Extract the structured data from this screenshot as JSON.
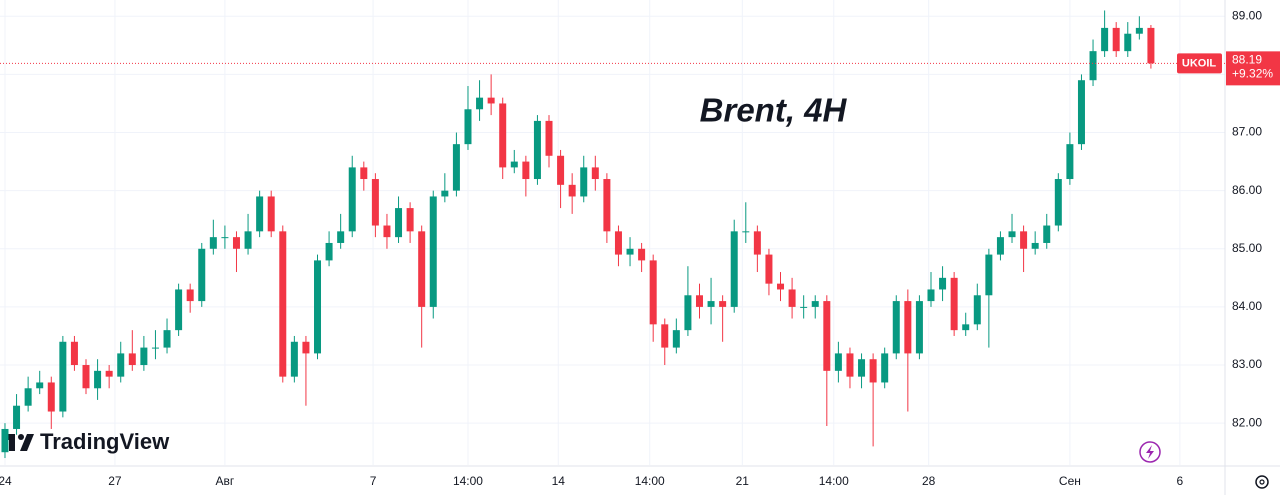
{
  "chart_data": {
    "type": "candlestick",
    "title": "Brent, 4H",
    "brand": "TradingView",
    "symbol": "UKOIL",
    "change": "+9.32%",
    "up_color": "#089981",
    "down_color": "#f23645",
    "grid": true,
    "open": [
      81.5,
      81.9,
      82.3,
      82.6,
      82.7,
      82.2,
      83.4,
      83.0,
      82.6,
      82.9,
      82.8,
      83.2,
      83.0,
      83.3,
      83.3,
      83.6,
      84.3,
      84.1,
      85.0,
      85.2,
      85.2,
      85.0,
      85.3,
      85.9,
      85.3,
      82.8,
      83.4,
      83.2,
      84.8,
      85.1,
      85.3,
      86.4,
      86.2,
      85.4,
      85.2,
      85.7,
      85.3,
      84.0,
      85.9,
      86.0,
      86.8,
      87.4,
      87.6,
      87.5,
      86.4,
      86.5,
      86.2,
      87.2,
      86.6,
      86.1,
      85.9,
      86.4,
      86.2,
      85.3,
      84.9,
      85.0,
      84.8,
      83.7,
      83.3,
      83.6,
      84.2,
      84.0,
      84.1,
      84.0,
      85.3,
      85.3,
      84.9,
      84.4,
      84.3,
      84.0,
      84.0,
      84.1,
      82.9,
      83.2,
      82.8,
      83.1,
      82.7,
      83.2,
      84.1,
      83.2,
      84.1,
      84.3,
      84.5,
      83.6,
      83.7,
      84.2,
      84.9,
      85.2,
      85.3,
      85.0,
      85.1,
      85.4,
      86.2,
      86.8,
      87.9,
      88.4,
      88.8,
      88.4,
      88.7,
      88.8
    ],
    "high": [
      82.0,
      82.5,
      82.8,
      82.9,
      82.8,
      83.5,
      83.5,
      83.1,
      83.1,
      83.0,
      83.4,
      83.6,
      83.5,
      83.6,
      83.8,
      84.4,
      84.4,
      85.1,
      85.5,
      85.4,
      85.3,
      85.6,
      86.0,
      86.0,
      85.4,
      83.5,
      83.5,
      84.9,
      85.3,
      85.6,
      86.6,
      86.5,
      86.3,
      85.6,
      85.9,
      85.8,
      85.4,
      86.0,
      86.3,
      87.0,
      87.8,
      87.9,
      88.0,
      87.6,
      86.7,
      86.6,
      87.3,
      87.3,
      86.7,
      86.3,
      86.6,
      86.6,
      86.3,
      85.4,
      85.2,
      85.1,
      84.9,
      83.8,
      83.8,
      84.7,
      84.4,
      84.5,
      84.2,
      85.5,
      85.8,
      85.4,
      85.0,
      84.6,
      84.5,
      84.2,
      84.2,
      84.2,
      83.4,
      83.3,
      83.2,
      83.2,
      83.3,
      84.2,
      84.3,
      84.2,
      84.6,
      84.7,
      84.6,
      83.9,
      84.4,
      85.0,
      85.3,
      85.6,
      85.4,
      85.3,
      85.6,
      86.3,
      87.0,
      88.0,
      88.6,
      89.1,
      88.9,
      88.9,
      89.0,
      88.85
    ],
    "low": [
      81.4,
      81.8,
      82.2,
      82.5,
      81.9,
      82.1,
      82.9,
      82.5,
      82.4,
      82.6,
      82.7,
      82.9,
      82.9,
      83.1,
      83.2,
      83.5,
      83.9,
      84.0,
      84.9,
      85.0,
      84.6,
      84.9,
      85.2,
      85.2,
      82.7,
      82.7,
      82.3,
      83.1,
      84.7,
      85.0,
      85.2,
      86.0,
      85.2,
      85.0,
      85.1,
      85.1,
      83.3,
      83.8,
      85.8,
      85.9,
      86.7,
      87.2,
      87.3,
      86.2,
      86.3,
      85.9,
      86.1,
      86.4,
      85.7,
      85.6,
      85.8,
      86.0,
      85.1,
      84.7,
      84.7,
      84.6,
      83.4,
      83.0,
      83.2,
      83.5,
      83.8,
      83.7,
      83.4,
      83.9,
      85.1,
      84.6,
      84.2,
      84.1,
      83.8,
      83.8,
      83.8,
      81.95,
      82.7,
      82.6,
      82.6,
      81.6,
      82.6,
      83.1,
      82.2,
      83.1,
      84.0,
      84.1,
      83.5,
      83.5,
      83.6,
      83.3,
      84.8,
      85.1,
      84.6,
      84.9,
      85.0,
      85.3,
      86.1,
      86.7,
      87.8,
      88.3,
      88.3,
      88.3,
      88.6,
      88.1
    ],
    "close": [
      81.9,
      82.3,
      82.6,
      82.7,
      82.2,
      83.4,
      83.0,
      82.6,
      82.9,
      82.8,
      83.2,
      83.0,
      83.3,
      83.3,
      83.6,
      84.3,
      84.1,
      85.0,
      85.2,
      85.2,
      85.0,
      85.3,
      85.9,
      85.3,
      82.8,
      83.4,
      83.2,
      84.8,
      85.1,
      85.3,
      86.4,
      86.2,
      85.4,
      85.2,
      85.7,
      85.3,
      84.0,
      85.9,
      86.0,
      86.8,
      87.4,
      87.6,
      87.5,
      86.4,
      86.5,
      86.2,
      87.2,
      86.6,
      86.1,
      85.9,
      86.4,
      86.2,
      85.3,
      84.9,
      85.0,
      84.8,
      83.7,
      83.3,
      83.6,
      84.2,
      84.0,
      84.1,
      84.0,
      85.3,
      85.3,
      84.9,
      84.4,
      84.3,
      84.0,
      84.0,
      84.1,
      82.9,
      83.2,
      82.8,
      83.1,
      82.7,
      83.2,
      84.1,
      83.2,
      84.1,
      84.3,
      84.5,
      83.6,
      83.7,
      84.2,
      84.9,
      85.2,
      85.3,
      85.0,
      85.1,
      85.4,
      86.2,
      86.8,
      87.9,
      88.4,
      88.8,
      88.4,
      88.7,
      88.8,
      88.19
    ],
    "xlim": [
      -0.43,
      105.4
    ],
    "xticks": [
      {
        "value": 0,
        "label": "24"
      },
      {
        "value": 9.5,
        "label": "27"
      },
      {
        "value": 19,
        "label": "Авг"
      },
      {
        "value": 31.8,
        "label": "7"
      },
      {
        "value": 40,
        "label": "14:00"
      },
      {
        "value": 47.8,
        "label": "14"
      },
      {
        "value": 55.7,
        "label": "14:00"
      },
      {
        "value": 63.7,
        "label": "21"
      },
      {
        "value": 71.6,
        "label": "14:00"
      },
      {
        "value": 79.8,
        "label": "28"
      },
      {
        "value": 92,
        "label": "Сен"
      },
      {
        "value": 101.5,
        "label": "6"
      }
    ],
    "ylim": [
      81.28,
      89.28
    ],
    "yticks": [
      {
        "value": 82,
        "label": "82.00"
      },
      {
        "value": 83,
        "label": "83.00"
      },
      {
        "value": 84,
        "label": "84.00"
      },
      {
        "value": 85,
        "label": "85.00"
      },
      {
        "value": 86,
        "label": "86.00"
      },
      {
        "value": 87,
        "label": "87.00"
      },
      {
        "value": 88,
        "label": "88.00"
      },
      {
        "value": 89,
        "label": "89.00"
      }
    ]
  }
}
